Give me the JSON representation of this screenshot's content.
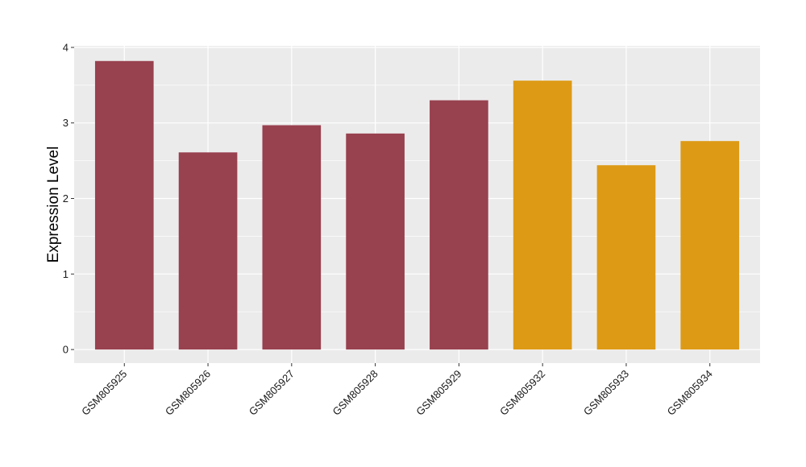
{
  "chart_data": {
    "type": "bar",
    "title": "",
    "xlabel": "",
    "ylabel": "Expression Level",
    "categories": [
      "GSM805925",
      "GSM805926",
      "GSM805927",
      "GSM805928",
      "GSM805929",
      "GSM805932",
      "GSM805933",
      "GSM805934"
    ],
    "values": [
      3.82,
      2.61,
      2.97,
      2.86,
      3.3,
      3.56,
      2.44,
      2.76
    ],
    "bar_colors": [
      "#98414F",
      "#98414F",
      "#98414F",
      "#98414F",
      "#98414F",
      "#DD9A15",
      "#DD9A15",
      "#DD9A15"
    ],
    "ylim": [
      -0.18,
      4.02
    ],
    "yticks": [
      0,
      1,
      2,
      3,
      4
    ],
    "grid": true,
    "legend": "none",
    "panel_background": "#EBEBEB",
    "gridline_color": "#FFFFFF"
  }
}
